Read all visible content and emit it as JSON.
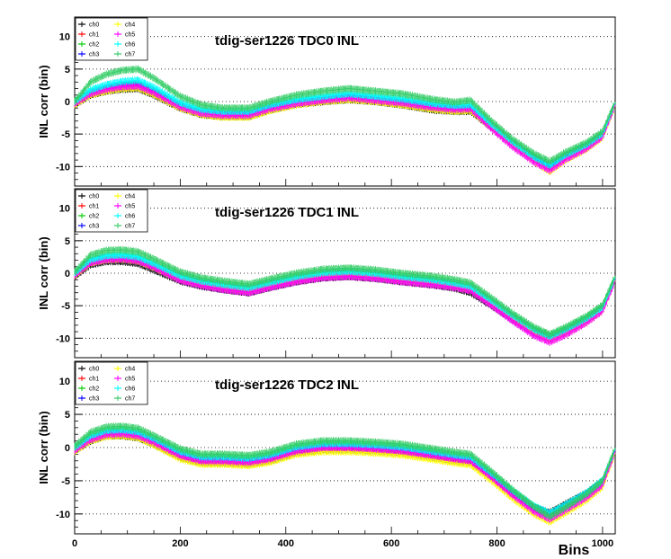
{
  "chart_data": [
    {
      "type": "line",
      "title": "tdig-ser1226 TDC0 INL",
      "ylabel": "INL corr (bin)",
      "xlabel": "",
      "xlim": [
        0,
        1024
      ],
      "ylim": [
        -13,
        13
      ],
      "yticks": [
        -10,
        -5,
        0,
        5,
        10
      ],
      "grid": "horizontal-dotted",
      "legend": "top-left",
      "x": [
        0,
        30,
        60,
        90,
        120,
        150,
        200,
        240,
        280,
        330,
        370,
        420,
        470,
        520,
        570,
        620,
        680,
        720,
        750,
        790,
        830,
        870,
        900,
        930,
        970,
        1000,
        1024
      ],
      "series": [
        {
          "name": "ch0",
          "values": [
            -0.5,
            1.0,
            1.6,
            1.9,
            2.0,
            1.0,
            -1.0,
            -2.0,
            -2.3,
            -2.3,
            -1.3,
            -0.4,
            0.0,
            0.3,
            0.0,
            -0.5,
            -1.3,
            -1.5,
            -1.5,
            -4.0,
            -6.5,
            -8.8,
            -10.0,
            -8.5,
            -7.0,
            -5.2,
            -0.5
          ]
        },
        {
          "name": "ch1",
          "values": [
            -0.3,
            1.3,
            2.0,
            2.4,
            2.5,
            1.5,
            -0.7,
            -1.7,
            -2.0,
            -2.0,
            -1.0,
            -0.2,
            0.3,
            0.7,
            0.3,
            -0.1,
            -0.8,
            -1.1,
            -1.0,
            -3.8,
            -6.5,
            -8.7,
            -10.0,
            -8.4,
            -6.8,
            -5.0,
            -0.3
          ]
        },
        {
          "name": "ch2",
          "values": [
            0.0,
            1.5,
            2.2,
            2.6,
            2.8,
            1.8,
            -0.5,
            -1.5,
            -1.8,
            -1.8,
            -0.8,
            0.0,
            0.5,
            0.9,
            0.5,
            0.1,
            -0.6,
            -0.9,
            -0.8,
            -3.7,
            -6.4,
            -8.6,
            -9.9,
            -8.3,
            -6.7,
            -5.0,
            -0.2
          ]
        },
        {
          "name": "ch3",
          "values": [
            -0.2,
            1.4,
            2.1,
            2.5,
            2.6,
            1.6,
            -0.6,
            -1.6,
            -1.9,
            -1.9,
            -0.9,
            -0.1,
            0.4,
            0.8,
            0.4,
            0.0,
            -0.7,
            -1.0,
            -0.9,
            -3.7,
            -6.5,
            -8.7,
            -10.0,
            -8.4,
            -6.8,
            -5.0,
            -0.3
          ]
        },
        {
          "name": "ch4",
          "values": [
            -0.5,
            1.0,
            1.6,
            2.0,
            2.1,
            1.1,
            -1.0,
            -2.0,
            -2.4,
            -2.4,
            -1.4,
            -0.5,
            0.0,
            0.3,
            0.0,
            -0.5,
            -1.2,
            -1.5,
            -1.4,
            -4.0,
            -6.8,
            -9.2,
            -10.8,
            -9.0,
            -7.3,
            -5.5,
            -0.6
          ]
        },
        {
          "name": "ch5",
          "values": [
            -0.3,
            1.2,
            1.9,
            2.3,
            2.4,
            1.4,
            -0.8,
            -1.8,
            -2.1,
            -2.1,
            -1.1,
            -0.3,
            0.2,
            0.6,
            0.2,
            -0.2,
            -0.9,
            -1.2,
            -1.1,
            -4.2,
            -7.0,
            -9.3,
            -10.6,
            -8.9,
            -7.2,
            -5.4,
            -0.5
          ]
        },
        {
          "name": "ch6",
          "values": [
            0.0,
            1.8,
            2.6,
            3.1,
            3.3,
            2.2,
            -0.2,
            -1.2,
            -1.5,
            -1.5,
            -0.5,
            0.3,
            0.8,
            1.2,
            0.8,
            0.4,
            -0.3,
            -0.6,
            -0.5,
            -3.5,
            -6.2,
            -8.5,
            -9.8,
            -8.2,
            -6.6,
            -4.9,
            -0.2
          ]
        },
        {
          "name": "ch7",
          "values": [
            0.0,
            3.0,
            4.2,
            4.8,
            5.0,
            3.6,
            0.8,
            -0.5,
            -1.0,
            -1.0,
            0.0,
            1.0,
            1.6,
            2.0,
            1.6,
            1.2,
            0.3,
            -0.1,
            0.2,
            -3.0,
            -5.8,
            -8.0,
            -9.2,
            -7.8,
            -6.3,
            -4.6,
            0.0
          ]
        }
      ]
    },
    {
      "type": "line",
      "title": "tdig-ser1226 TDC1 INL",
      "ylabel": "INL corr (bin)",
      "xlabel": "",
      "xlim": [
        0,
        1024
      ],
      "ylim": [
        -13,
        13
      ],
      "yticks": [
        -10,
        -5,
        0,
        5,
        10
      ],
      "grid": "horizontal-dotted",
      "legend": "top-left",
      "x": [
        0,
        30,
        60,
        90,
        120,
        150,
        200,
        240,
        280,
        330,
        370,
        420,
        470,
        520,
        570,
        620,
        680,
        720,
        750,
        790,
        830,
        870,
        900,
        930,
        970,
        1000,
        1024
      ],
      "series": [
        {
          "name": "ch0",
          "values": [
            -0.5,
            1.3,
            1.8,
            1.8,
            1.5,
            0.5,
            -1.2,
            -2.0,
            -2.5,
            -3.0,
            -2.2,
            -1.3,
            -0.7,
            -0.5,
            -0.8,
            -1.3,
            -1.8,
            -2.3,
            -3.0,
            -5.0,
            -7.2,
            -9.2,
            -10.0,
            -9.0,
            -7.3,
            -5.5,
            -1.0
          ]
        },
        {
          "name": "ch1",
          "values": [
            -0.3,
            1.7,
            2.2,
            2.3,
            2.0,
            1.0,
            -0.8,
            -1.6,
            -2.1,
            -2.6,
            -1.8,
            -0.9,
            -0.3,
            -0.1,
            -0.4,
            -0.9,
            -1.4,
            -1.9,
            -2.4,
            -4.6,
            -6.8,
            -8.8,
            -9.8,
            -8.8,
            -7.0,
            -5.3,
            -0.8
          ]
        },
        {
          "name": "ch2",
          "values": [
            0.0,
            2.0,
            2.6,
            2.7,
            2.4,
            1.4,
            -0.5,
            -1.3,
            -1.8,
            -2.3,
            -1.5,
            -0.6,
            0.0,
            0.2,
            -0.1,
            -0.6,
            -1.1,
            -1.6,
            -2.1,
            -4.3,
            -6.6,
            -8.6,
            -9.6,
            -8.6,
            -6.8,
            -5.1,
            -0.6
          ]
        },
        {
          "name": "ch3",
          "values": [
            -0.2,
            1.8,
            2.3,
            2.4,
            2.1,
            1.1,
            -0.7,
            -1.5,
            -2.0,
            -2.5,
            -1.7,
            -0.8,
            -0.2,
            0.0,
            -0.3,
            -0.8,
            -1.3,
            -1.8,
            -2.3,
            -4.5,
            -6.8,
            -8.9,
            -10.0,
            -8.9,
            -7.1,
            -5.4,
            -0.8
          ]
        },
        {
          "name": "ch4",
          "values": [
            -0.4,
            1.6,
            2.1,
            2.2,
            1.9,
            0.9,
            -0.9,
            -1.7,
            -2.2,
            -2.7,
            -1.9,
            -1.0,
            -0.4,
            -0.2,
            -0.5,
            -1.0,
            -1.5,
            -2.0,
            -2.5,
            -4.7,
            -7.0,
            -9.2,
            -10.4,
            -9.3,
            -7.5,
            -5.7,
            -1.1
          ]
        },
        {
          "name": "ch5",
          "values": [
            -0.3,
            1.6,
            2.1,
            2.2,
            1.9,
            0.9,
            -1.1,
            -1.9,
            -2.5,
            -3.0,
            -2.2,
            -1.3,
            -0.7,
            -0.5,
            -0.8,
            -1.3,
            -1.8,
            -2.2,
            -2.7,
            -5.0,
            -7.4,
            -9.6,
            -10.6,
            -9.5,
            -7.6,
            -5.8,
            -1.2
          ]
        },
        {
          "name": "ch6",
          "values": [
            0.0,
            2.1,
            2.7,
            2.8,
            2.5,
            1.5,
            -0.4,
            -1.2,
            -1.7,
            -2.2,
            -1.4,
            -0.5,
            0.1,
            0.3,
            0.0,
            -0.5,
            -1.0,
            -1.5,
            -2.0,
            -4.2,
            -6.5,
            -8.6,
            -9.7,
            -8.6,
            -6.9,
            -5.2,
            -0.7
          ]
        },
        {
          "name": "ch7",
          "values": [
            0.2,
            2.8,
            3.5,
            3.6,
            3.3,
            2.2,
            0.2,
            -0.7,
            -1.2,
            -1.7,
            -0.9,
            0.0,
            0.6,
            0.8,
            0.5,
            0.0,
            -0.5,
            -1.0,
            -1.5,
            -3.8,
            -6.2,
            -8.3,
            -9.4,
            -8.3,
            -6.6,
            -4.9,
            -0.4
          ]
        }
      ]
    },
    {
      "type": "line",
      "title": "tdig-ser1226 TDC2 INL",
      "ylabel": "INL corr (bin)",
      "xlabel": "Bins",
      "xlim": [
        0,
        1024
      ],
      "ylim": [
        -13,
        13
      ],
      "xticks": [
        0,
        200,
        400,
        600,
        800,
        1000
      ],
      "yticks": [
        -10,
        -5,
        0,
        5,
        10
      ],
      "grid": "horizontal-dotted",
      "legend": "top-left",
      "x": [
        0,
        30,
        60,
        90,
        120,
        150,
        200,
        240,
        280,
        330,
        370,
        420,
        470,
        520,
        570,
        620,
        680,
        720,
        750,
        790,
        830,
        870,
        900,
        930,
        970,
        1000,
        1024
      ],
      "series": [
        {
          "name": "ch0",
          "values": [
            -0.5,
            1.0,
            1.8,
            1.8,
            1.5,
            0.5,
            -1.5,
            -2.3,
            -2.3,
            -2.5,
            -2.0,
            -0.8,
            -0.3,
            -0.3,
            -0.5,
            -0.8,
            -1.5,
            -2.0,
            -2.3,
            -4.5,
            -7.0,
            -9.0,
            -9.8,
            -8.5,
            -6.8,
            -5.0,
            -0.5
          ]
        },
        {
          "name": "ch1",
          "values": [
            -0.3,
            1.3,
            2.1,
            2.2,
            1.9,
            0.9,
            -1.1,
            -1.9,
            -1.9,
            -2.1,
            -1.6,
            -0.4,
            0.1,
            0.1,
            -0.1,
            -0.4,
            -1.1,
            -1.6,
            -1.9,
            -4.3,
            -6.9,
            -9.2,
            -10.2,
            -8.9,
            -7.1,
            -5.2,
            -0.4
          ]
        },
        {
          "name": "ch2",
          "values": [
            0.0,
            1.7,
            2.5,
            2.6,
            2.3,
            1.3,
            -0.7,
            -1.5,
            -1.5,
            -1.7,
            -1.2,
            0.0,
            0.5,
            0.5,
            0.3,
            0.0,
            -0.7,
            -1.2,
            -1.5,
            -4.0,
            -6.6,
            -8.9,
            -10.0,
            -8.7,
            -6.9,
            -5.0,
            -0.2
          ]
        },
        {
          "name": "ch3",
          "values": [
            -0.2,
            1.4,
            2.2,
            2.3,
            2.0,
            1.0,
            -1.0,
            -1.8,
            -1.8,
            -2.0,
            -1.5,
            -0.3,
            0.2,
            0.2,
            0.0,
            -0.3,
            -1.0,
            -1.5,
            -1.8,
            -4.2,
            -6.8,
            -9.0,
            -10.0,
            -8.7,
            -6.9,
            -5.1,
            -0.4
          ]
        },
        {
          "name": "ch4",
          "values": [
            -0.6,
            1.0,
            1.7,
            1.8,
            1.5,
            0.4,
            -1.7,
            -2.5,
            -2.5,
            -2.7,
            -2.2,
            -1.0,
            -0.6,
            -0.6,
            -0.8,
            -1.1,
            -1.8,
            -2.3,
            -2.6,
            -5.0,
            -7.7,
            -10.0,
            -11.2,
            -9.8,
            -7.9,
            -5.9,
            -0.8
          ]
        },
        {
          "name": "ch5",
          "values": [
            -0.4,
            1.2,
            2.0,
            2.1,
            1.8,
            0.8,
            -1.2,
            -2.0,
            -2.0,
            -2.2,
            -1.7,
            -0.5,
            0.0,
            0.0,
            -0.2,
            -0.5,
            -1.2,
            -1.7,
            -2.0,
            -4.5,
            -7.2,
            -9.6,
            -10.8,
            -9.4,
            -7.5,
            -5.6,
            -0.6
          ]
        },
        {
          "name": "ch6",
          "values": [
            0.0,
            1.8,
            2.6,
            2.7,
            2.4,
            1.4,
            -0.6,
            -1.4,
            -1.4,
            -1.6,
            -1.1,
            0.1,
            0.6,
            0.6,
            0.4,
            0.1,
            -0.6,
            -1.1,
            -1.4,
            -3.9,
            -6.5,
            -8.8,
            -9.9,
            -8.6,
            -6.8,
            -4.9,
            -0.2
          ]
        },
        {
          "name": "ch7",
          "values": [
            0.2,
            2.3,
            3.1,
            3.2,
            2.9,
            1.8,
            -0.2,
            -1.0,
            -1.0,
            -1.2,
            -0.7,
            0.5,
            1.0,
            1.0,
            0.8,
            0.5,
            -0.2,
            -0.7,
            -1.0,
            -3.6,
            -6.4,
            -8.9,
            -10.4,
            -9.0,
            -7.0,
            -5.0,
            0.0
          ]
        }
      ]
    }
  ],
  "colors": {
    "ch0": "#000000",
    "ch1": "#ff0000",
    "ch2": "#00cc00",
    "ch3": "#0000ff",
    "ch4": "#ffff00",
    "ch5": "#ff00ff",
    "ch6": "#00ffff",
    "ch7": "#33cc66"
  }
}
